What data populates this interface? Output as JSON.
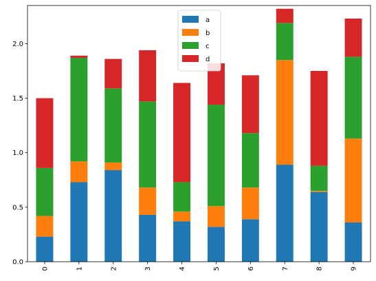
{
  "chart_data": {
    "type": "bar",
    "stacked": true,
    "categories": [
      "0",
      "1",
      "2",
      "3",
      "4",
      "5",
      "6",
      "7",
      "8",
      "9"
    ],
    "series": [
      {
        "name": "a",
        "color": "#1f77b4",
        "values": [
          0.23,
          0.73,
          0.84,
          0.43,
          0.37,
          0.32,
          0.39,
          0.89,
          0.64,
          0.36
        ]
      },
      {
        "name": "b",
        "color": "#ff7f0e",
        "values": [
          0.19,
          0.19,
          0.07,
          0.25,
          0.09,
          0.19,
          0.29,
          0.96,
          0.01,
          0.77
        ]
      },
      {
        "name": "c",
        "color": "#2ca02c",
        "values": [
          0.44,
          0.95,
          0.68,
          0.79,
          0.27,
          0.93,
          0.5,
          0.34,
          0.23,
          0.75
        ]
      },
      {
        "name": "d",
        "color": "#d62728",
        "values": [
          0.64,
          0.02,
          0.27,
          0.47,
          0.91,
          0.38,
          0.53,
          0.13,
          0.87,
          0.35
        ]
      }
    ],
    "ylim": [
      0,
      2.35
    ],
    "yticks": [
      "0.0",
      "0.5",
      "1.0",
      "1.5",
      "2.0"
    ],
    "xlabel": "",
    "ylabel": "",
    "title": "",
    "grid": false,
    "legend_position": "top-center",
    "x_tick_rotation": 90
  }
}
